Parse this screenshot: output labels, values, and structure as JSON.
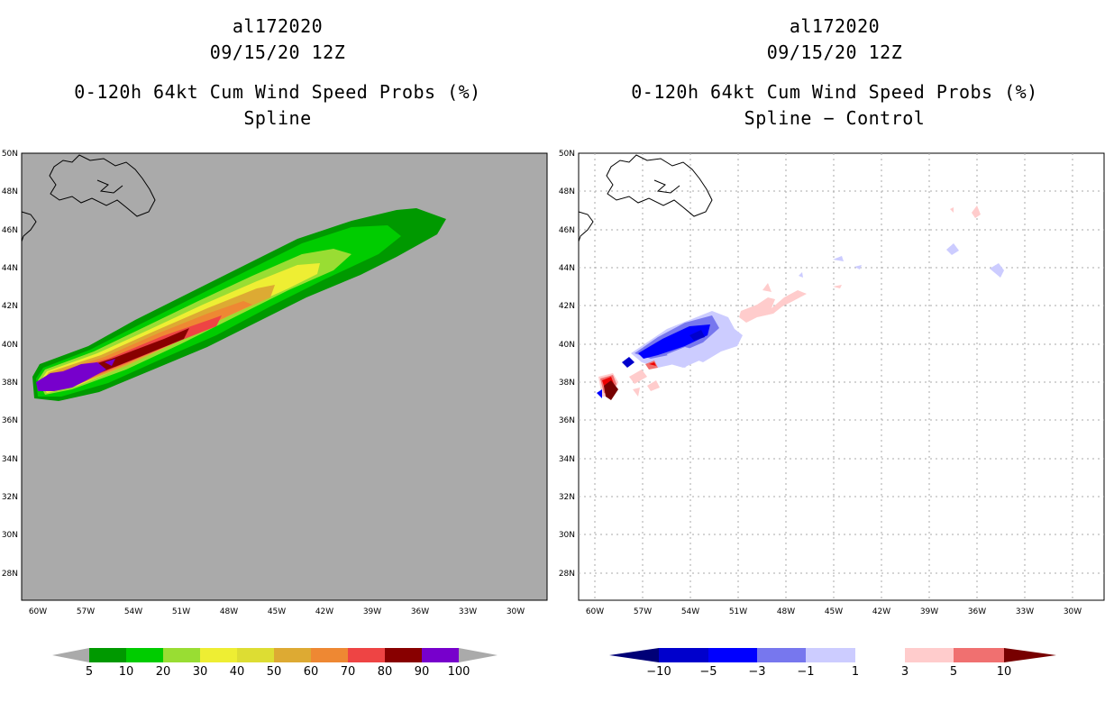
{
  "panels": [
    {
      "storm_id": "al172020",
      "datetime": "09/15/20 12Z",
      "product": "0-120h 64kt Cum Wind Speed Probs (%)",
      "subtitle": "Spline"
    },
    {
      "storm_id": "al172020",
      "datetime": "09/15/20 12Z",
      "product": "0-120h 64kt Cum Wind Speed Probs (%)",
      "subtitle": "Spline − Control"
    }
  ],
  "axes": {
    "lat_labels": [
      "50N",
      "48N",
      "46N",
      "44N",
      "42N",
      "40N",
      "38N",
      "36N",
      "34N",
      "32N",
      "30N",
      "28N"
    ],
    "lon_labels": [
      "60W",
      "57W",
      "54W",
      "51W",
      "48W",
      "45W",
      "42W",
      "39W",
      "36W",
      "33W",
      "30W"
    ]
  },
  "colorbars": {
    "left": {
      "labels": [
        "5",
        "10",
        "20",
        "30",
        "40",
        "50",
        "60",
        "70",
        "80",
        "90",
        "100"
      ],
      "colors": [
        "#009900",
        "#00cc00",
        "#99dd33",
        "#eeee33",
        "#dddd33",
        "#ddaa33",
        "#ee8833",
        "#ee4444",
        "#880000",
        "#7700cc"
      ],
      "end_color": "#aaaaaa"
    },
    "right": {
      "labels": [
        "−10",
        "−5",
        "−3",
        "−1",
        "1",
        "3",
        "5",
        "10"
      ],
      "colors": [
        "#0000cc",
        "#0000ff",
        "#7777ee",
        "#ccccff",
        "#ffffff",
        "#ffcccc",
        "#f07070",
        "#ee0000"
      ],
      "neg_end": "#000077",
      "pos_end": "#770000"
    }
  },
  "map_data": {
    "background_left": "#aaaaaa",
    "background_right": "#ffffff"
  }
}
